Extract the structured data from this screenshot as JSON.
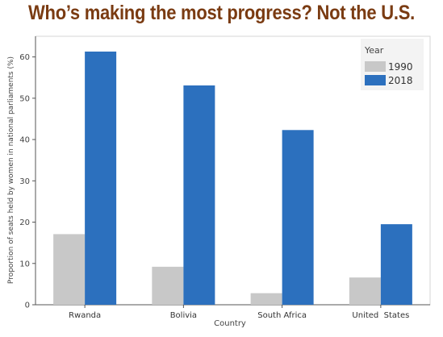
{
  "page_title": "Who’s making the most progress? Not the U.S.",
  "chart_data": {
    "type": "bar",
    "categories": [
      "Rwanda",
      "Bolivia",
      "South Africa",
      "United  States"
    ],
    "series": [
      {
        "name": "1990",
        "values": [
          17.1,
          9.2,
          2.8,
          6.6
        ],
        "color": "#c8c8c8"
      },
      {
        "name": "2018",
        "values": [
          61.3,
          53.1,
          42.3,
          19.5
        ],
        "color": "#2c70be"
      }
    ],
    "title": "",
    "xlabel": "Country",
    "ylabel": "Proportion of seats held by women in national parliaments (%)",
    "ylim": [
      0,
      65
    ],
    "yticks": [
      0,
      10,
      20,
      30,
      40,
      50,
      60
    ],
    "legend": {
      "title": "Year",
      "position": "top-right"
    },
    "grid": false
  }
}
